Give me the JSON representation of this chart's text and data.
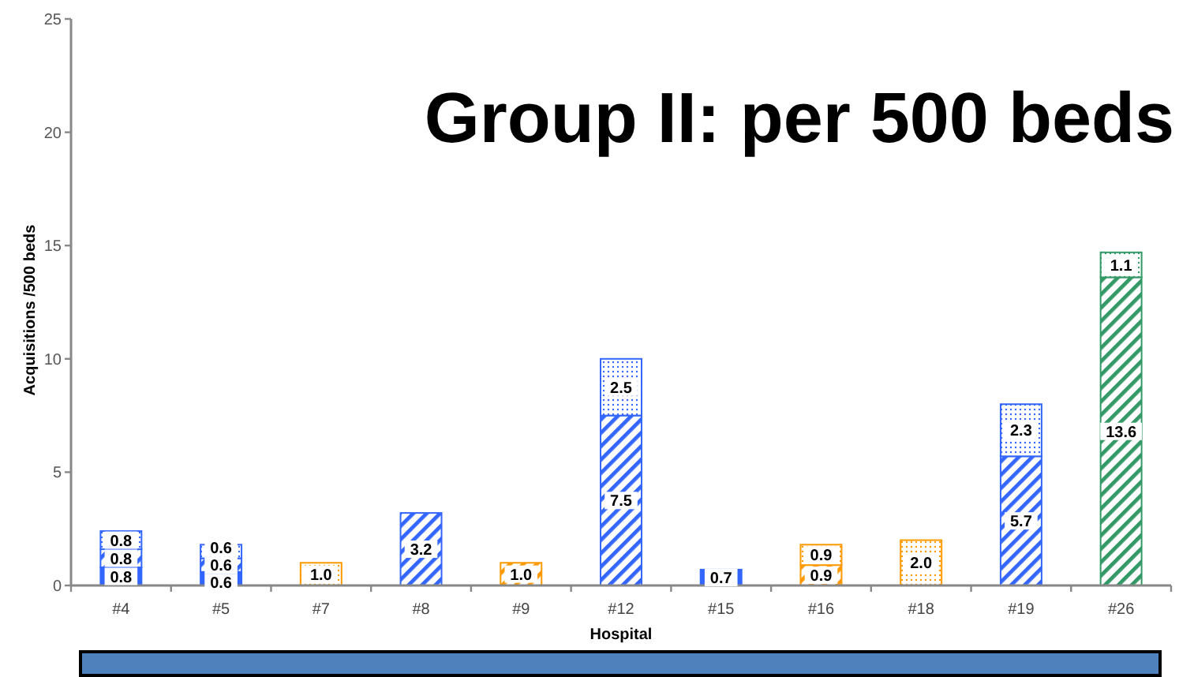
{
  "chart_data": {
    "type": "bar",
    "title": "Group II: per 500 beds",
    "xlabel": "Hospital",
    "ylabel": "Acquisitions /500 beds",
    "categories": [
      "#4",
      "#5",
      "#7",
      "#8",
      "#9",
      "#12",
      "#15",
      "#16",
      "#18",
      "#19",
      "#26"
    ],
    "stacked": true,
    "ylim": [
      0,
      25
    ],
    "yticks": [
      0,
      5,
      10,
      15,
      20,
      25
    ],
    "series": [
      {
        "values": [
          0.8,
          0.6,
          null,
          null,
          null,
          null,
          0.7,
          null,
          null,
          null,
          null
        ],
        "value_labels": [
          "0.8",
          "0.6",
          null,
          null,
          null,
          null,
          "0.7",
          null,
          null,
          null,
          null
        ],
        "colors": [
          "#3366ff",
          "#3366ff",
          null,
          null,
          null,
          null,
          "#3366ff",
          null,
          null,
          null,
          null
        ]
      },
      {
        "values": [
          0.8,
          0.6,
          null,
          3.2,
          1.0,
          7.5,
          null,
          0.9,
          null,
          5.7,
          13.6
        ],
        "value_labels": [
          "0.8",
          "0.6",
          null,
          "3.2",
          "1.0",
          "7.5",
          null,
          "0.9",
          null,
          "5.7",
          "13.6"
        ],
        "colors": [
          "#3366ff",
          "#3366ff",
          null,
          "#3366ff",
          "#ff9900",
          "#3366ff",
          null,
          "#ff9900",
          null,
          "#3366ff",
          "#339966"
        ]
      },
      {
        "values": [
          0.8,
          0.6,
          1.0,
          null,
          null,
          2.5,
          null,
          0.9,
          2.0,
          2.3,
          1.1
        ],
        "value_labels": [
          "0.8",
          "0.6",
          "1.0",
          null,
          null,
          "2.5",
          null,
          "0.9",
          "2.0",
          "2.3",
          "1.1"
        ],
        "colors": [
          "#3366ff",
          "#3366ff",
          "#ff9900",
          null,
          null,
          "#3366ff",
          null,
          "#ff9900",
          "#ff9900",
          "#3366ff",
          "#339966"
        ]
      }
    ]
  }
}
